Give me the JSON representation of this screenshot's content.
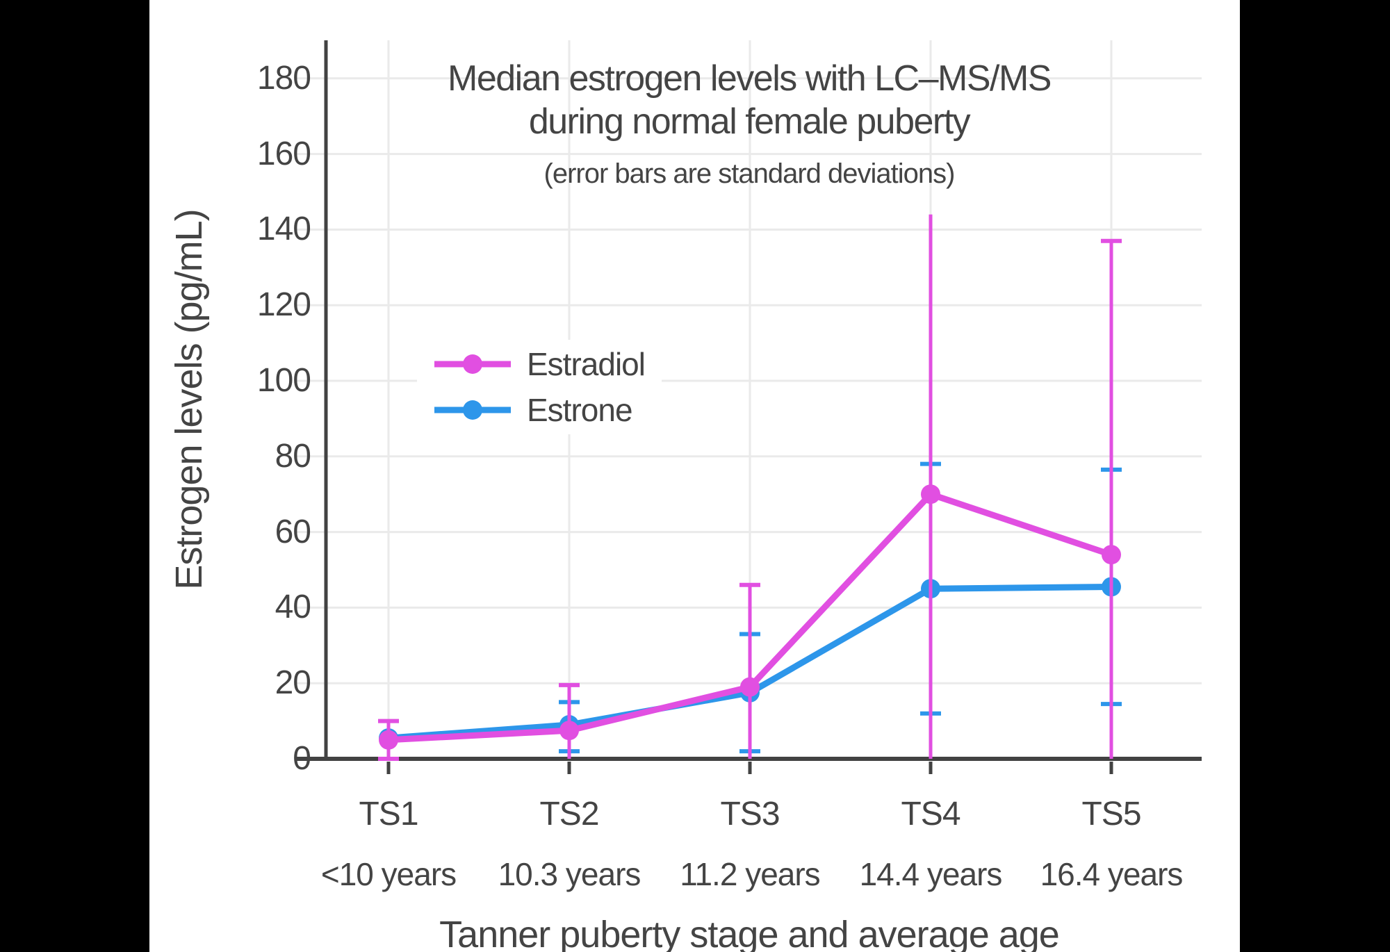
{
  "colors": {
    "background": "#000000",
    "plot_background": "#FFFFFF",
    "text": "#444444",
    "grid": "#EAEAEA",
    "axis": "#424242",
    "estradiol": "#E14FE1",
    "estrone": "#2D96EA"
  },
  "chart_data": {
    "type": "line",
    "title_line1": "Median estrogen levels with LC–MS/MS",
    "title_line2": "during normal female puberty",
    "subtitle": "(error bars are standard deviations)",
    "xlabel": "Tanner puberty stage and average age",
    "ylabel": "Estrogen levels (pg/mL)",
    "categories": [
      "TS1",
      "TS2",
      "TS3",
      "TS4",
      "TS5"
    ],
    "category_ages": [
      "<10 years",
      "10.3 years",
      "11.2 years",
      "14.4 years",
      "16.4 years"
    ],
    "yticks": [
      0,
      20,
      40,
      60,
      80,
      100,
      120,
      140,
      160,
      180
    ],
    "ylim": [
      0,
      190
    ],
    "grid": true,
    "legend_position": "inside-left-middle",
    "series": [
      {
        "name": "Estradiol",
        "color": "#E14FE1",
        "values": [
          5,
          7.5,
          19,
          70,
          54
        ],
        "sd_upper": [
          10,
          19.5,
          46,
          144,
          137
        ],
        "sd_lower": [
          0,
          0,
          0,
          0,
          0
        ],
        "cap_upper": [
          true,
          true,
          true,
          false,
          true
        ],
        "cap_lower": [
          true,
          false,
          false,
          false,
          false
        ]
      },
      {
        "name": "Estrone",
        "color": "#2D96EA",
        "values": [
          5.5,
          9,
          17.5,
          45,
          45.5
        ],
        "sd_upper": [
          null,
          15,
          33,
          78,
          76.5
        ],
        "sd_lower": [
          null,
          2,
          2,
          12,
          14.5
        ],
        "cap_upper": [
          false,
          true,
          true,
          true,
          true
        ],
        "cap_lower": [
          false,
          true,
          true,
          true,
          true
        ]
      }
    ]
  }
}
